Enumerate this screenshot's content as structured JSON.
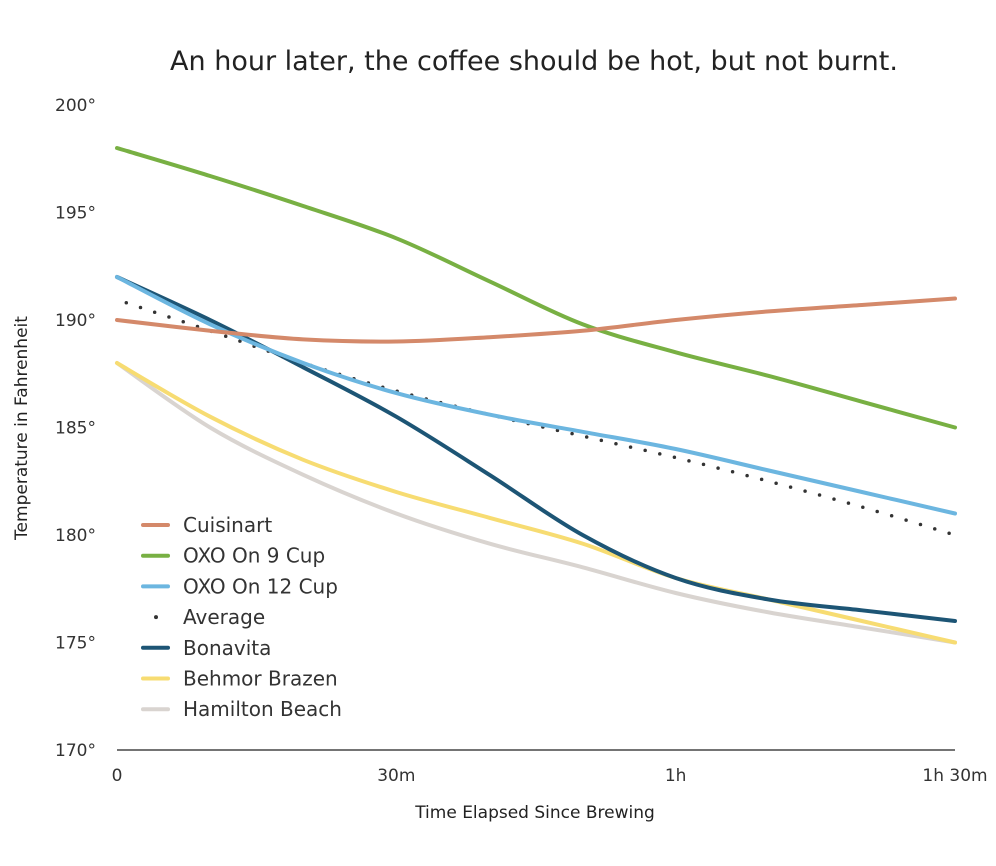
{
  "chart_data": {
    "type": "line",
    "title": "An hour later, the coffee should be hot, but not burnt.",
    "xlabel": "Time Elapsed Since Brewing",
    "ylabel": "Temperature in Fahrenheit",
    "xlim": [
      0,
      90
    ],
    "ylim": [
      170,
      200
    ],
    "x_ticks": [
      {
        "value": 0,
        "label": "0"
      },
      {
        "value": 30,
        "label": "30m"
      },
      {
        "value": 60,
        "label": "1h"
      },
      {
        "value": 90,
        "label": "1h 30m"
      }
    ],
    "y_ticks": [
      {
        "value": 170,
        "label": "170°"
      },
      {
        "value": 175,
        "label": "175°"
      },
      {
        "value": 180,
        "label": "180°"
      },
      {
        "value": 185,
        "label": "185°"
      },
      {
        "value": 190,
        "label": "190°"
      },
      {
        "value": 195,
        "label": "195°"
      },
      {
        "value": 200,
        "label": "200°"
      }
    ],
    "legend_position": "bottom-left",
    "series": [
      {
        "name": "Cuisinart",
        "color": "#d4896a",
        "style": "solid",
        "x": [
          0,
          10,
          20,
          30,
          40,
          50,
          60,
          70,
          80,
          90
        ],
        "y": [
          190,
          189.5,
          189.1,
          189,
          189.2,
          189.5,
          190,
          190.4,
          190.7,
          191
        ]
      },
      {
        "name": "OXO On 9 Cup",
        "color": "#78b043",
        "style": "solid",
        "x": [
          0,
          10,
          20,
          30,
          40,
          50,
          60,
          70,
          80,
          90
        ],
        "y": [
          198,
          196.7,
          195.3,
          193.8,
          191.8,
          189.8,
          188.5,
          187.4,
          186.2,
          185
        ]
      },
      {
        "name": "OXO On 12 Cup",
        "color": "#6cb6e0",
        "style": "solid",
        "x": [
          0,
          10,
          20,
          30,
          40,
          50,
          60,
          70,
          80,
          90
        ],
        "y": [
          192,
          189.8,
          188,
          186.6,
          185.6,
          184.8,
          184,
          183,
          182,
          181
        ]
      },
      {
        "name": "Average",
        "color": "#333333",
        "style": "dotted",
        "x": [
          1,
          10,
          20,
          30,
          40,
          50,
          60,
          70,
          80,
          90
        ],
        "y": [
          190.8,
          189.5,
          188,
          186.7,
          185.6,
          184.6,
          183.6,
          182.5,
          181.3,
          180
        ]
      },
      {
        "name": "Bonavita",
        "color": "#1d5575",
        "style": "solid",
        "x": [
          0,
          10,
          20,
          30,
          40,
          50,
          60,
          70,
          80,
          90
        ],
        "y": [
          192,
          190,
          187.8,
          185.5,
          182.8,
          180,
          178,
          177,
          176.5,
          176
        ]
      },
      {
        "name": "Behmor Brazen",
        "color": "#f7dc72",
        "style": "solid",
        "x": [
          0,
          10,
          20,
          30,
          40,
          50,
          60,
          70,
          80,
          90
        ],
        "y": [
          188,
          185.5,
          183.5,
          182,
          180.8,
          179.6,
          178,
          177,
          176,
          175
        ]
      },
      {
        "name": "Hamilton Beach",
        "color": "#d9d4d0",
        "style": "solid",
        "x": [
          0,
          10,
          20,
          30,
          40,
          50,
          60,
          70,
          80,
          90
        ],
        "y": [
          188,
          185,
          182.8,
          181,
          179.6,
          178.5,
          177.3,
          176.4,
          175.7,
          175
        ]
      }
    ]
  }
}
